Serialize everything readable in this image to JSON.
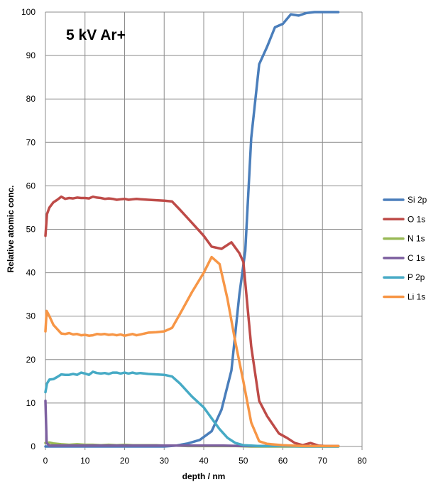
{
  "chart_data": {
    "type": "line",
    "title": "5 kV Ar+",
    "xlabel": "depth / nm",
    "ylabel": "Relative atomic conc.",
    "xlim": [
      0,
      80
    ],
    "ylim": [
      0,
      100
    ],
    "xticks": [
      "0",
      "10",
      "20",
      "30",
      "40",
      "50",
      "60",
      "70",
      "80"
    ],
    "yticks": [
      "0",
      "10",
      "20",
      "30",
      "40",
      "50",
      "60",
      "70",
      "80",
      "90",
      "100"
    ],
    "legend_position": "right",
    "series": [
      {
        "name": "Si 2p",
        "color": "#4a7ebb",
        "x": [
          0,
          5,
          10,
          15,
          20,
          25,
          30,
          33,
          36,
          39,
          42,
          44.5,
          47,
          49,
          50.5,
          52,
          54,
          56,
          58,
          60,
          62,
          64,
          66,
          68,
          70,
          74
        ],
        "y": [
          0,
          0,
          0,
          0,
          0,
          0,
          0,
          0.2,
          0.7,
          1.5,
          3.5,
          8.5,
          17.5,
          35,
          45,
          71,
          88,
          92,
          96.5,
          97.3,
          99.5,
          99.2,
          99.8,
          100,
          100,
          100
        ]
      },
      {
        "name": "O 1s",
        "color": "#be4b48",
        "x": [
          0,
          0.4,
          1,
          2,
          3,
          4,
          5,
          6,
          7,
          8,
          9,
          10,
          11,
          12,
          13,
          14,
          15,
          16,
          17,
          18,
          19,
          20,
          21,
          22,
          23,
          24,
          26,
          28,
          30,
          32,
          34,
          37,
          40,
          42,
          44.5,
          47,
          49,
          50,
          52,
          54,
          56,
          59,
          61,
          63,
          65,
          67,
          69,
          71,
          74
        ],
        "y": [
          48.5,
          53.5,
          55,
          56.2,
          56.8,
          57.5,
          57,
          57.2,
          57.1,
          57.3,
          57.2,
          57.2,
          57.1,
          57.5,
          57.3,
          57.2,
          57,
          57.1,
          57,
          56.8,
          56.9,
          57,
          56.8,
          56.9,
          57,
          56.9,
          56.8,
          56.7,
          56.6,
          56.4,
          54.5,
          51.5,
          48.5,
          46,
          45.5,
          47,
          44.5,
          42.5,
          23,
          10.5,
          7,
          3,
          2,
          0.8,
          0.3,
          0.8,
          0.2,
          0.1,
          0.1
        ]
      },
      {
        "name": "N 1s",
        "color": "#98b954",
        "x": [
          0,
          1,
          2,
          4,
          6,
          8,
          10,
          12,
          14,
          16,
          18,
          20,
          22,
          24,
          26,
          28,
          30,
          33,
          36,
          40,
          44,
          48,
          52,
          56,
          60,
          65,
          70,
          74
        ],
        "y": [
          0.8,
          0.9,
          0.7,
          0.5,
          0.4,
          0.5,
          0.4,
          0.4,
          0.3,
          0.4,
          0.3,
          0.4,
          0.3,
          0.3,
          0.3,
          0.3,
          0.2,
          0.2,
          0.1,
          0.1,
          0.1,
          0.1,
          0,
          0,
          0,
          0,
          0,
          0
        ]
      },
      {
        "name": "C 1s",
        "color": "#7d60a0",
        "x": [
          0,
          0.3,
          1,
          3,
          6,
          10,
          15,
          20,
          25,
          30,
          35,
          40,
          45,
          50,
          55,
          60,
          65,
          70,
          74
        ],
        "y": [
          10.5,
          0.8,
          0.2,
          0.2,
          0.2,
          0.2,
          0.2,
          0.2,
          0.2,
          0.2,
          0.2,
          0.2,
          0.2,
          0.1,
          0.1,
          0.1,
          0.1,
          0.1,
          0.1
        ]
      },
      {
        "name": "P 2p",
        "color": "#46aac5",
        "x": [
          0,
          0.4,
          1,
          2,
          3,
          4,
          5,
          6,
          7,
          8,
          9,
          10,
          11,
          12,
          13,
          14,
          15,
          16,
          17,
          18,
          19,
          20,
          21,
          22,
          23,
          24,
          26,
          28,
          30,
          32,
          34,
          37,
          40,
          42,
          44,
          46,
          48,
          50,
          52,
          54,
          56,
          58,
          60,
          65,
          70,
          74
        ],
        "y": [
          12.5,
          14.5,
          15.4,
          15.5,
          16,
          16.6,
          16.5,
          16.5,
          16.7,
          16.5,
          17,
          16.8,
          16.5,
          17.2,
          16.9,
          16.8,
          16.9,
          16.7,
          17,
          17,
          16.8,
          17,
          16.8,
          17,
          16.8,
          16.9,
          16.7,
          16.6,
          16.5,
          16.1,
          14.5,
          11.5,
          9,
          6.5,
          4,
          2,
          0.8,
          0.3,
          0.2,
          0.1,
          0.1,
          0.1,
          0.1,
          0,
          0,
          0
        ]
      },
      {
        "name": "Li 1s",
        "color": "#f79646",
        "x": [
          0,
          0.3,
          1,
          2,
          3,
          4,
          5,
          6,
          7,
          8,
          9,
          10,
          11,
          12,
          13,
          14,
          15,
          16,
          17,
          18,
          19,
          20,
          21,
          22,
          23,
          24,
          26,
          28,
          30,
          32,
          34,
          37,
          40,
          42,
          44,
          46,
          48,
          50,
          52,
          54,
          56,
          60,
          65,
          70,
          74
        ],
        "y": [
          26.5,
          31.2,
          30,
          28,
          27,
          26,
          25.9,
          26.1,
          25.8,
          25.9,
          25.6,
          25.7,
          25.5,
          25.6,
          25.9,
          25.8,
          25.9,
          25.7,
          25.8,
          25.6,
          25.8,
          25.5,
          25.7,
          25.9,
          25.6,
          25.8,
          26.2,
          26.3,
          26.5,
          27.3,
          30.5,
          35.5,
          40,
          43.6,
          42,
          34,
          24,
          15,
          5.5,
          1.2,
          0.6,
          0.3,
          0.1,
          0.1,
          0.1
        ]
      }
    ]
  }
}
